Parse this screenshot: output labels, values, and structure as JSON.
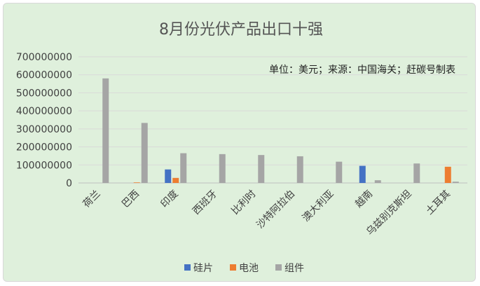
{
  "chart_data": {
    "type": "bar",
    "title": "8月份光伏产品出口十强",
    "note": "单位：美元；来源：中国海关；赶碳号制表",
    "categories": [
      "荷兰",
      "巴西",
      "印度",
      "西班牙",
      "比利时",
      "沙特阿拉伯",
      "澳大利亚",
      "越南",
      "乌兹别克斯坦",
      "土耳其"
    ],
    "series": [
      {
        "name": "硅片",
        "color": "#4472c4",
        "values": [
          0,
          0,
          75000000,
          0,
          0,
          0,
          0,
          95000000,
          0,
          0
        ]
      },
      {
        "name": "电池",
        "color": "#ed7d31",
        "values": [
          0,
          3000000,
          28000000,
          0,
          0,
          0,
          0,
          0,
          0,
          90000000
        ]
      },
      {
        "name": "组件",
        "color": "#a5a5a5",
        "values": [
          580000000,
          333000000,
          165000000,
          160000000,
          155000000,
          148000000,
          118000000,
          15000000,
          108000000,
          7000000
        ]
      }
    ],
    "yticks": [
      "0",
      "100000000",
      "200000000",
      "300000000",
      "400000000",
      "500000000",
      "600000000",
      "700000000"
    ],
    "ylim": [
      0,
      700000000
    ],
    "grid": true,
    "legend_position": "bottom"
  }
}
